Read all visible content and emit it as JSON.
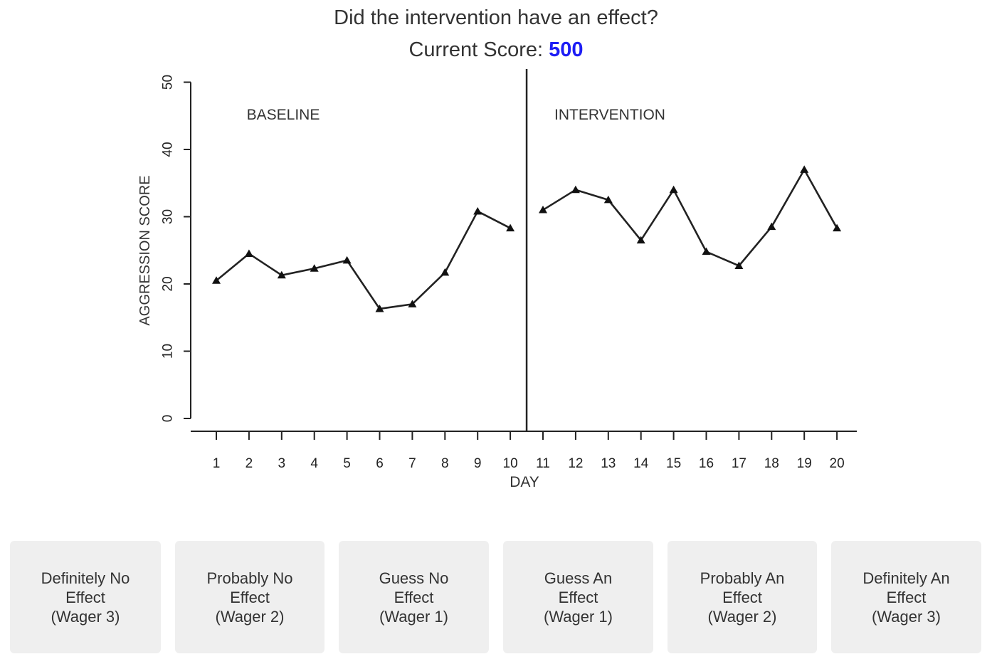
{
  "header": {
    "question": "Did the intervention have an effect?",
    "score_label": "Current Score: ",
    "score_value": "500",
    "score_color": "#1d1df5"
  },
  "chart_data": {
    "type": "line",
    "title": "",
    "xlabel": "DAY",
    "ylabel": "AGGRESSION SCORE",
    "ylim": [
      0,
      50
    ],
    "yticks": [
      0,
      10,
      20,
      30,
      40,
      50
    ],
    "xticks": [
      1,
      2,
      3,
      4,
      5,
      6,
      7,
      8,
      9,
      10,
      11,
      12,
      13,
      14,
      15,
      16,
      17,
      18,
      19,
      20
    ],
    "phase_change_after_day": 10.5,
    "marker": "triangle",
    "phases": [
      {
        "label": "BASELINE",
        "x": [
          1,
          2,
          3,
          4,
          5,
          6,
          7,
          8,
          9,
          10
        ],
        "y": [
          20.5,
          24.5,
          21.3,
          22.3,
          23.5,
          16.3,
          17.0,
          21.7,
          30.8,
          28.3
        ]
      },
      {
        "label": "INTERVENTION",
        "x": [
          11,
          12,
          13,
          14,
          15,
          16,
          17,
          18,
          19,
          20
        ],
        "y": [
          31.0,
          34.0,
          32.5,
          26.5,
          34.0,
          24.8,
          22.7,
          28.5,
          37.0,
          28.3
        ]
      }
    ]
  },
  "options": [
    {
      "line1": "Definitely No",
      "line2": "Effect",
      "line3": "(Wager 3)"
    },
    {
      "line1": "Probably No",
      "line2": "Effect",
      "line3": "(Wager 2)"
    },
    {
      "line1": "Guess No",
      "line2": "Effect",
      "line3": "(Wager 1)"
    },
    {
      "line1": "Guess An",
      "line2": "Effect",
      "line3": "(Wager 1)"
    },
    {
      "line1": "Probably An",
      "line2": "Effect",
      "line3": "(Wager 2)"
    },
    {
      "line1": "Definitely An",
      "line2": "Effect",
      "line3": "(Wager 3)"
    }
  ]
}
